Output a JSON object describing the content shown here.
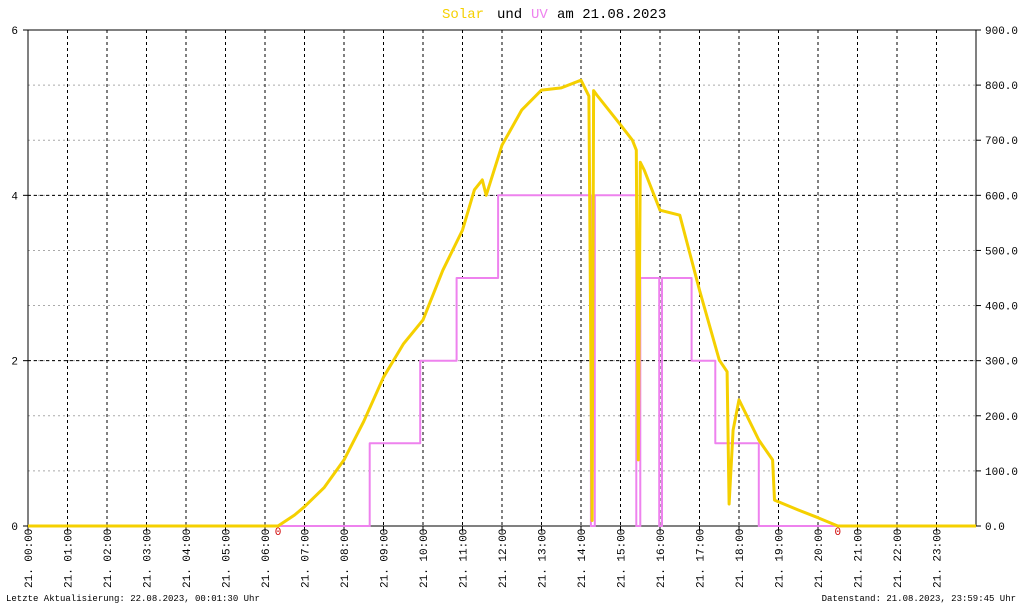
{
  "chart_data": {
    "type": "line",
    "title_join": "und",
    "title_date": "am 21.08.2023",
    "footer_left": "Letzte Aktualisierung: 22.08.2023, 00:01:30 Uhr",
    "footer_right": "Datenstand: 21.08.2023, 23:59:45 Uhr",
    "xlim": [
      0,
      24
    ],
    "xticks": [
      {
        "value": 0,
        "label": "21. 00:00"
      },
      {
        "value": 1,
        "label": "21. 01:00"
      },
      {
        "value": 2,
        "label": "21. 02:00"
      },
      {
        "value": 3,
        "label": "21. 03:00"
      },
      {
        "value": 4,
        "label": "21. 04:00"
      },
      {
        "value": 5,
        "label": "21. 05:00"
      },
      {
        "value": 6,
        "label": "21. 06:00"
      },
      {
        "value": 7,
        "label": "21. 07:00"
      },
      {
        "value": 8,
        "label": "21. 08:00"
      },
      {
        "value": 9,
        "label": "21. 09:00"
      },
      {
        "value": 10,
        "label": "21. 10:00"
      },
      {
        "value": 11,
        "label": "21. 11:00"
      },
      {
        "value": 12,
        "label": "21. 12:00"
      },
      {
        "value": 13,
        "label": "21. 13:00"
      },
      {
        "value": 14,
        "label": "21. 14:00"
      },
      {
        "value": 15,
        "label": "21. 15:00"
      },
      {
        "value": 16,
        "label": "21. 16:00"
      },
      {
        "value": 17,
        "label": "21. 17:00"
      },
      {
        "value": 18,
        "label": "21. 18:00"
      },
      {
        "value": 19,
        "label": "21. 19:00"
      },
      {
        "value": 20,
        "label": "21. 20:00"
      },
      {
        "value": 21,
        "label": "21. 21:00"
      },
      {
        "value": 22,
        "label": "21. 22:00"
      },
      {
        "value": 23,
        "label": "21. 23:00"
      }
    ],
    "ylim": [
      0,
      6
    ],
    "yticks": [
      0,
      2,
      4,
      6
    ],
    "y2lim": [
      0,
      900
    ],
    "y2ticks": [
      {
        "value": 0,
        "label": "0.0"
      },
      {
        "value": 100,
        "label": "100.0"
      },
      {
        "value": 200,
        "label": "200.0"
      },
      {
        "value": 300,
        "label": "300.0"
      },
      {
        "value": 400,
        "label": "400.0"
      },
      {
        "value": 500,
        "label": "500.0"
      },
      {
        "value": 600,
        "label": "600.0"
      },
      {
        "value": 700,
        "label": "700.0"
      },
      {
        "value": 800,
        "label": "800.0"
      },
      {
        "value": 900,
        "label": "900.0"
      }
    ],
    "grid": true,
    "series": [
      {
        "name": "Solar",
        "color": "#f5d000",
        "axis": "y2",
        "x": [
          0,
          6.33,
          6.75,
          7,
          7.5,
          8,
          8.5,
          9,
          9.5,
          10,
          10.5,
          11,
          11.3,
          11.5,
          11.6,
          12,
          12.5,
          13,
          13.5,
          14,
          14.2,
          14.28,
          14.32,
          14.4,
          15,
          15.3,
          15.4,
          15.45,
          15.5,
          15.6,
          16,
          16.5,
          17,
          17.5,
          17.7,
          17.75,
          17.85,
          18,
          18.5,
          18.85,
          18.9,
          19.5,
          20,
          20.5,
          24
        ],
        "values": [
          0,
          0,
          20,
          35,
          70,
          120,
          190,
          270,
          330,
          374,
          464,
          537,
          610,
          628,
          600,
          691,
          755,
          791,
          795,
          809,
          780,
          10,
          790,
          782,
          728,
          700,
          682,
          120,
          660,
          646,
          573,
          564,
          428,
          301,
          280,
          40,
          174,
          229,
          156,
          120,
          47,
          29,
          15,
          0,
          0
        ]
      },
      {
        "name": "UV",
        "color": "#ee82ee",
        "axis": "y",
        "x": [
          0,
          8.65,
          8.65,
          9.93,
          9.93,
          10.85,
          10.85,
          11.9,
          11.9,
          14.25,
          14.25,
          14.35,
          14.35,
          15.4,
          15.4,
          15.5,
          15.5,
          15.98,
          15.98,
          16.05,
          16.05,
          16.8,
          16.8,
          17.4,
          17.4,
          18.5,
          18.5,
          24
        ],
        "values": [
          0,
          0,
          1,
          1,
          2,
          2,
          3,
          3,
          4,
          4,
          0,
          0,
          4,
          4,
          0,
          0,
          3,
          3,
          0,
          0,
          3,
          3,
          2,
          2,
          1,
          1,
          0,
          0
        ]
      }
    ],
    "annotations": [
      {
        "x": 6.33,
        "label": "0",
        "color": "#d00000"
      },
      {
        "x": 20.5,
        "label": "0",
        "color": "#d00000"
      }
    ]
  }
}
